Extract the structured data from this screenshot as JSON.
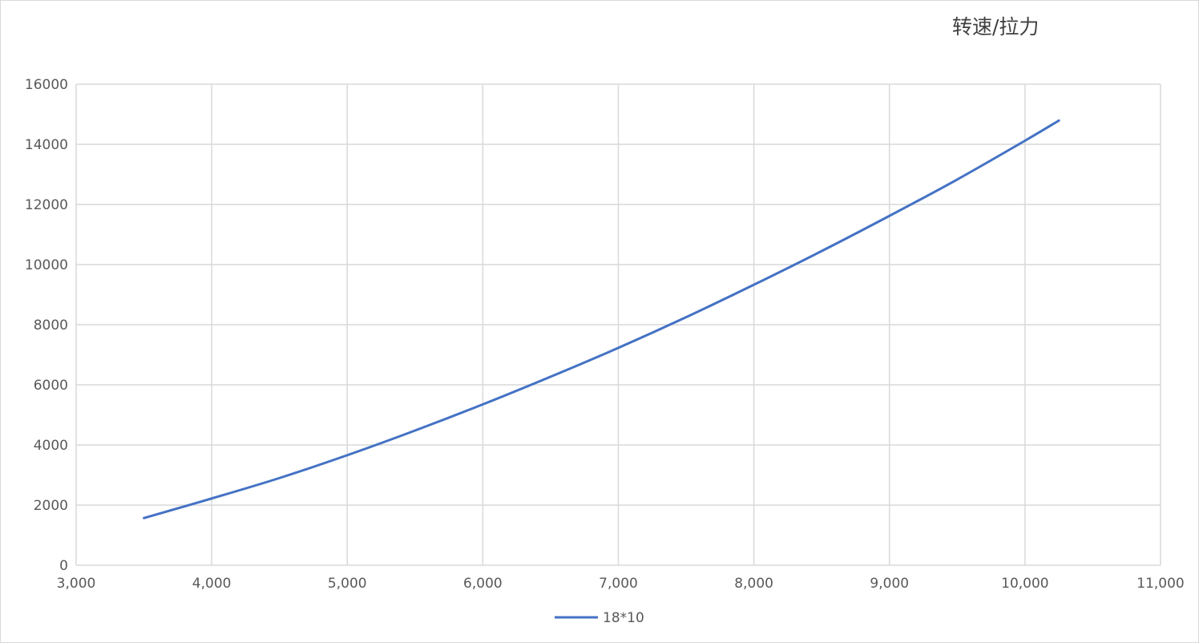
{
  "chart_data": {
    "type": "line",
    "title": "转速/拉力",
    "xlabel": "",
    "ylabel": "",
    "xlim": [
      3000,
      11000
    ],
    "ylim": [
      0,
      16000
    ],
    "x_ticks": [
      "3,000",
      "4,000",
      "5,000",
      "6,000",
      "7,000",
      "8,000",
      "9,000",
      "10,000",
      "11,000"
    ],
    "x_tick_values": [
      3000,
      4000,
      5000,
      6000,
      7000,
      8000,
      9000,
      10000,
      11000
    ],
    "y_ticks": [
      "0",
      "2000",
      "4000",
      "6000",
      "8000",
      "10000",
      "12000",
      "14000",
      "16000"
    ],
    "y_tick_values": [
      0,
      2000,
      4000,
      6000,
      8000,
      10000,
      12000,
      14000,
      16000
    ],
    "grid": true,
    "legend_position": "bottom",
    "series": [
      {
        "name": "18*10",
        "color": "#4472c4",
        "x": [
          3500,
          4000,
          4500,
          5000,
          5500,
          6000,
          6500,
          7000,
          7500,
          8000,
          8500,
          9000,
          9500,
          10000,
          10250
        ],
        "y": [
          1570,
          2220,
          2900,
          3660,
          4480,
          5350,
          6270,
          7230,
          8250,
          9330,
          10450,
          11620,
          12830,
          14120,
          14790
        ]
      }
    ]
  }
}
